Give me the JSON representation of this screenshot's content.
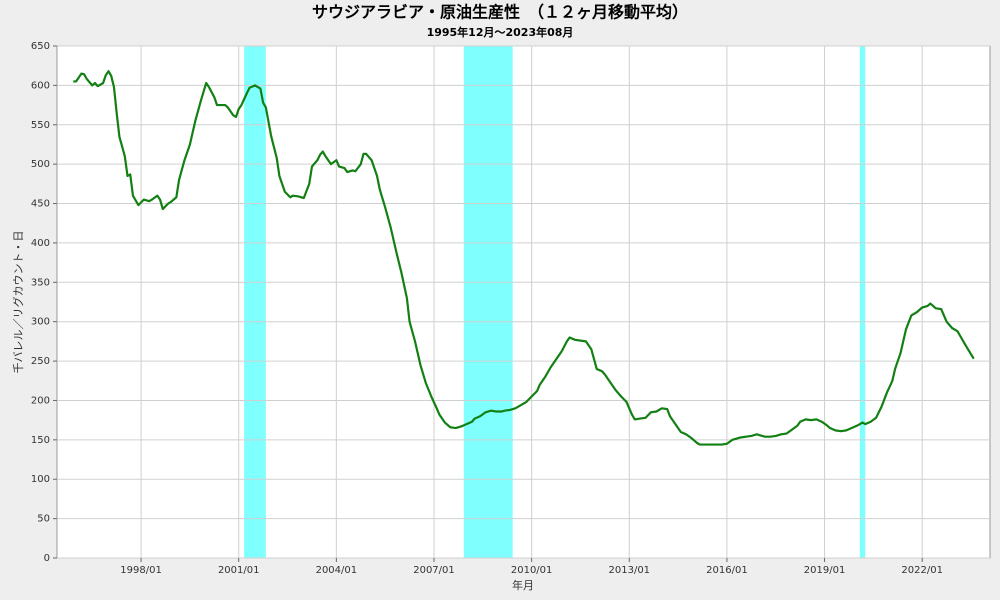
{
  "chart_data": {
    "type": "line",
    "title": "サウジアラビア・原油生産性　（１２ヶ月移動平均）",
    "subtitle": "1995年12月～2023年08月",
    "x_label": "年月",
    "y_label": "千バレル／リグカウント・日",
    "xlim": [
      "1995/06",
      "2024/02"
    ],
    "xticks": [
      "1998/01",
      "2001/01",
      "2004/01",
      "2007/01",
      "2010/01",
      "2013/01",
      "2016/01",
      "2019/01",
      "2022/01"
    ],
    "ylim": [
      0,
      650
    ],
    "yticks": [
      0,
      50,
      100,
      150,
      200,
      250,
      300,
      350,
      400,
      450,
      500,
      550,
      600,
      650
    ],
    "grid": true,
    "band_color": "#80ffff",
    "bands": [
      {
        "start": "2001/03",
        "end": "2001/11"
      },
      {
        "start": "2007/12",
        "end": "2009/06"
      },
      {
        "start": "2020/02",
        "end": "2020/04"
      }
    ],
    "x": [
      "1995/12",
      "1996/01",
      "1996/03",
      "1996/04",
      "1996/05",
      "1996/07",
      "1996/08",
      "1996/09",
      "1996/11",
      "1996/12",
      "1997/01",
      "1997/02",
      "1997/03",
      "1997/04",
      "1997/05",
      "1997/07",
      "1997/08",
      "1997/09",
      "1997/10",
      "1997/12",
      "1998/02",
      "1998/04",
      "1998/05",
      "1998/07",
      "1998/08",
      "1998/09",
      "1998/11",
      "1998/12",
      "1999/02",
      "1999/03",
      "1999/05",
      "1999/07",
      "1999/09",
      "1999/11",
      "2000/01",
      "2000/02",
      "2000/04",
      "2000/05",
      "2000/08",
      "2000/09",
      "2000/11",
      "2000/12",
      "2001/01",
      "2001/02",
      "2001/04",
      "2001/05",
      "2001/07",
      "2001/09",
      "2001/10",
      "2001/11",
      "2002/01",
      "2002/03",
      "2002/04",
      "2002/06",
      "2002/08",
      "2002/09",
      "2002/11",
      "2003/01",
      "2003/03",
      "2003/04",
      "2003/06",
      "2003/07",
      "2003/08",
      "2003/09",
      "2003/11",
      "2004/01",
      "2004/02",
      "2004/04",
      "2004/05",
      "2004/07",
      "2004/08",
      "2004/10",
      "2004/11",
      "2004/12",
      "2005/02",
      "2005/04",
      "2005/05",
      "2005/07",
      "2005/09",
      "2005/11",
      "2006/01",
      "2006/03",
      "2006/04",
      "2006/06",
      "2006/08",
      "2006/10",
      "2006/12",
      "2007/02",
      "2007/03",
      "2007/05",
      "2007/07",
      "2007/09",
      "2007/11",
      "2008/01",
      "2008/03",
      "2008/04",
      "2008/06",
      "2008/08",
      "2008/10",
      "2008/12",
      "2009/02",
      "2009/03",
      "2009/05",
      "2009/07",
      "2009/09",
      "2009/11",
      "2010/01",
      "2010/03",
      "2010/04",
      "2010/06",
      "2010/08",
      "2010/10",
      "2010/12",
      "2011/02",
      "2011/03",
      "2011/05",
      "2011/07",
      "2011/09",
      "2011/11",
      "2012/01",
      "2012/03",
      "2012/04",
      "2012/06",
      "2012/08",
      "2012/10",
      "2012/12",
      "2013/02",
      "2013/03",
      "2013/05",
      "2013/07",
      "2013/09",
      "2013/11",
      "2014/01",
      "2014/03",
      "2014/04",
      "2014/06",
      "2014/08",
      "2014/10",
      "2014/12",
      "2015/02",
      "2015/03",
      "2015/07",
      "2015/11",
      "2016/01",
      "2016/03",
      "2016/04",
      "2016/06",
      "2016/08",
      "2016/10",
      "2016/12",
      "2017/02",
      "2017/03",
      "2017/05",
      "2017/07",
      "2017/09",
      "2017/11",
      "2018/01",
      "2018/03",
      "2018/04",
      "2018/06",
      "2018/08",
      "2018/10",
      "2018/12",
      "2019/02",
      "2019/03",
      "2019/05",
      "2019/07",
      "2019/09",
      "2019/11",
      "2020/01",
      "2020/03",
      "2020/04",
      "2020/06",
      "2020/08",
      "2020/10",
      "2020/12",
      "2021/02",
      "2021/03",
      "2021/05",
      "2021/07",
      "2021/09",
      "2021/11",
      "2022/01",
      "2022/03",
      "2022/04",
      "2022/06",
      "2022/08",
      "2022/10",
      "2022/12",
      "2023/02",
      "2023/03",
      "2023/05",
      "2023/08"
    ],
    "series": [
      {
        "name": "原油生産性",
        "color": "#138013",
        "values": [
          605,
          605,
          615,
          614,
          608,
          600,
          603,
          599,
          603,
          613,
          618,
          612,
          598,
          565,
          535,
          510,
          485,
          487,
          460,
          448,
          455,
          453,
          455,
          460,
          455,
          443,
          450,
          452,
          458,
          480,
          505,
          525,
          555,
          580,
          603,
          598,
          585,
          575,
          575,
          572,
          562,
          560,
          570,
          575,
          590,
          597,
          600,
          596,
          578,
          572,
          535,
          508,
          485,
          465,
          458,
          460,
          459,
          457,
          475,
          497,
          505,
          512,
          516,
          510,
          500,
          505,
          497,
          495,
          490,
          492,
          491,
          500,
          513,
          513,
          505,
          485,
          468,
          445,
          420,
          390,
          362,
          330,
          300,
          275,
          245,
          222,
          205,
          190,
          182,
          172,
          166,
          165,
          167,
          170,
          173,
          177,
          180,
          185,
          187,
          186,
          186,
          187,
          188,
          190,
          194,
          198,
          205,
          212,
          220,
          230,
          242,
          252,
          262,
          275,
          280,
          277,
          276,
          275,
          265,
          240,
          237,
          233,
          223,
          213,
          205,
          198,
          182,
          176,
          177,
          178,
          185,
          186,
          190,
          189,
          180,
          170,
          160,
          157,
          152,
          146,
          144,
          144,
          144,
          145,
          150,
          151,
          153,
          154,
          155,
          157,
          155,
          154,
          154,
          155,
          157,
          158,
          163,
          168,
          173,
          176,
          175,
          176,
          173,
          168,
          165,
          162,
          161,
          162,
          165,
          168,
          172,
          170,
          173,
          178,
          192,
          210,
          225,
          240,
          260,
          290,
          308,
          312,
          318,
          320,
          323,
          317,
          316,
          300,
          292,
          288,
          282,
          270,
          253
        ]
      }
    ]
  }
}
